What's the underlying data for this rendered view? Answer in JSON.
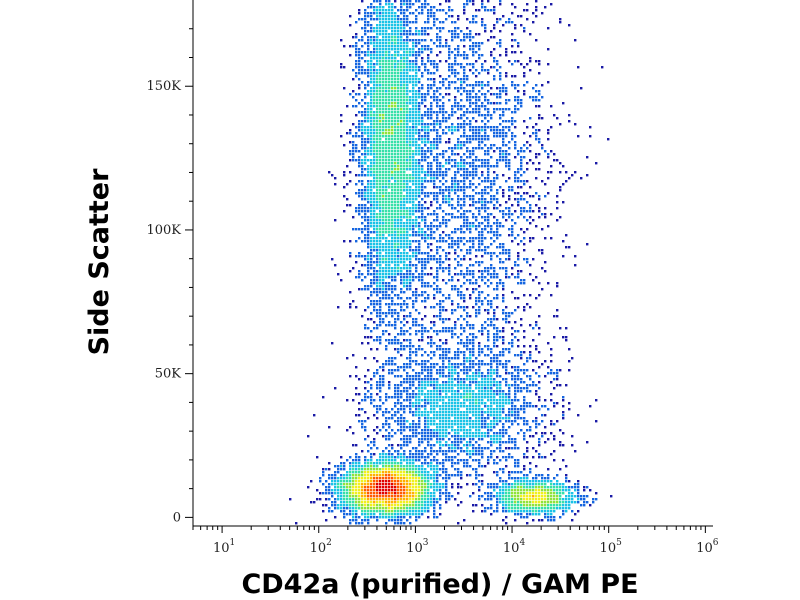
{
  "chart_data": {
    "type": "scatter",
    "subtype": "flow-cytometry-density-dot-plot",
    "xlabel": "CD42a (purified) / GAM PE",
    "ylabel": "Side Scatter",
    "x_scale": "log",
    "xlim": [
      5,
      1200000
    ],
    "ylim": [
      -3000,
      180000
    ],
    "x_ticks": [
      {
        "base": "10",
        "exp": "1",
        "value": 10
      },
      {
        "base": "10",
        "exp": "2",
        "value": 100
      },
      {
        "base": "10",
        "exp": "3",
        "value": 1000
      },
      {
        "base": "10",
        "exp": "4",
        "value": 10000
      },
      {
        "base": "10",
        "exp": "5",
        "value": 100000
      },
      {
        "base": "10",
        "exp": "6",
        "value": 1000000
      }
    ],
    "y_ticks": [
      {
        "label": "0",
        "value": 0
      },
      {
        "label": "50K",
        "value": 50000
      },
      {
        "label": "100K",
        "value": 100000
      },
      {
        "label": "150K",
        "value": 150000
      }
    ],
    "color_scale": [
      "#1a1aa6",
      "#1565e0",
      "#19c3e6",
      "#35e0a8",
      "#8fe33a",
      "#f0f01c",
      "#ffb000",
      "#ff5a00",
      "#e00000"
    ],
    "populations": [
      {
        "name": "",
        "x_center": 500,
        "y_center": 10000,
        "x_spread_decades": 0.24,
        "y_spread": 4500,
        "count": 5200,
        "peak_density": "high"
      },
      {
        "name": "",
        "x_center": 17000,
        "y_center": 7000,
        "x_spread_decades": 0.22,
        "y_spread": 3000,
        "count": 1500,
        "peak_density": "medium"
      },
      {
        "name": "",
        "x_center": 550,
        "y_center": 130000,
        "x_spread_decades": 0.17,
        "y_spread": 30000,
        "count": 5500,
        "peak_density": "medium"
      },
      {
        "name": "",
        "x_center": 3000,
        "y_center": 120000,
        "x_spread_decades": 0.45,
        "y_spread": 40000,
        "count": 3500,
        "peak_density": "low"
      },
      {
        "name": "",
        "x_center": 3000,
        "y_center": 38000,
        "x_spread_decades": 0.45,
        "y_spread": 12000,
        "count": 2600,
        "peak_density": "low"
      }
    ]
  }
}
